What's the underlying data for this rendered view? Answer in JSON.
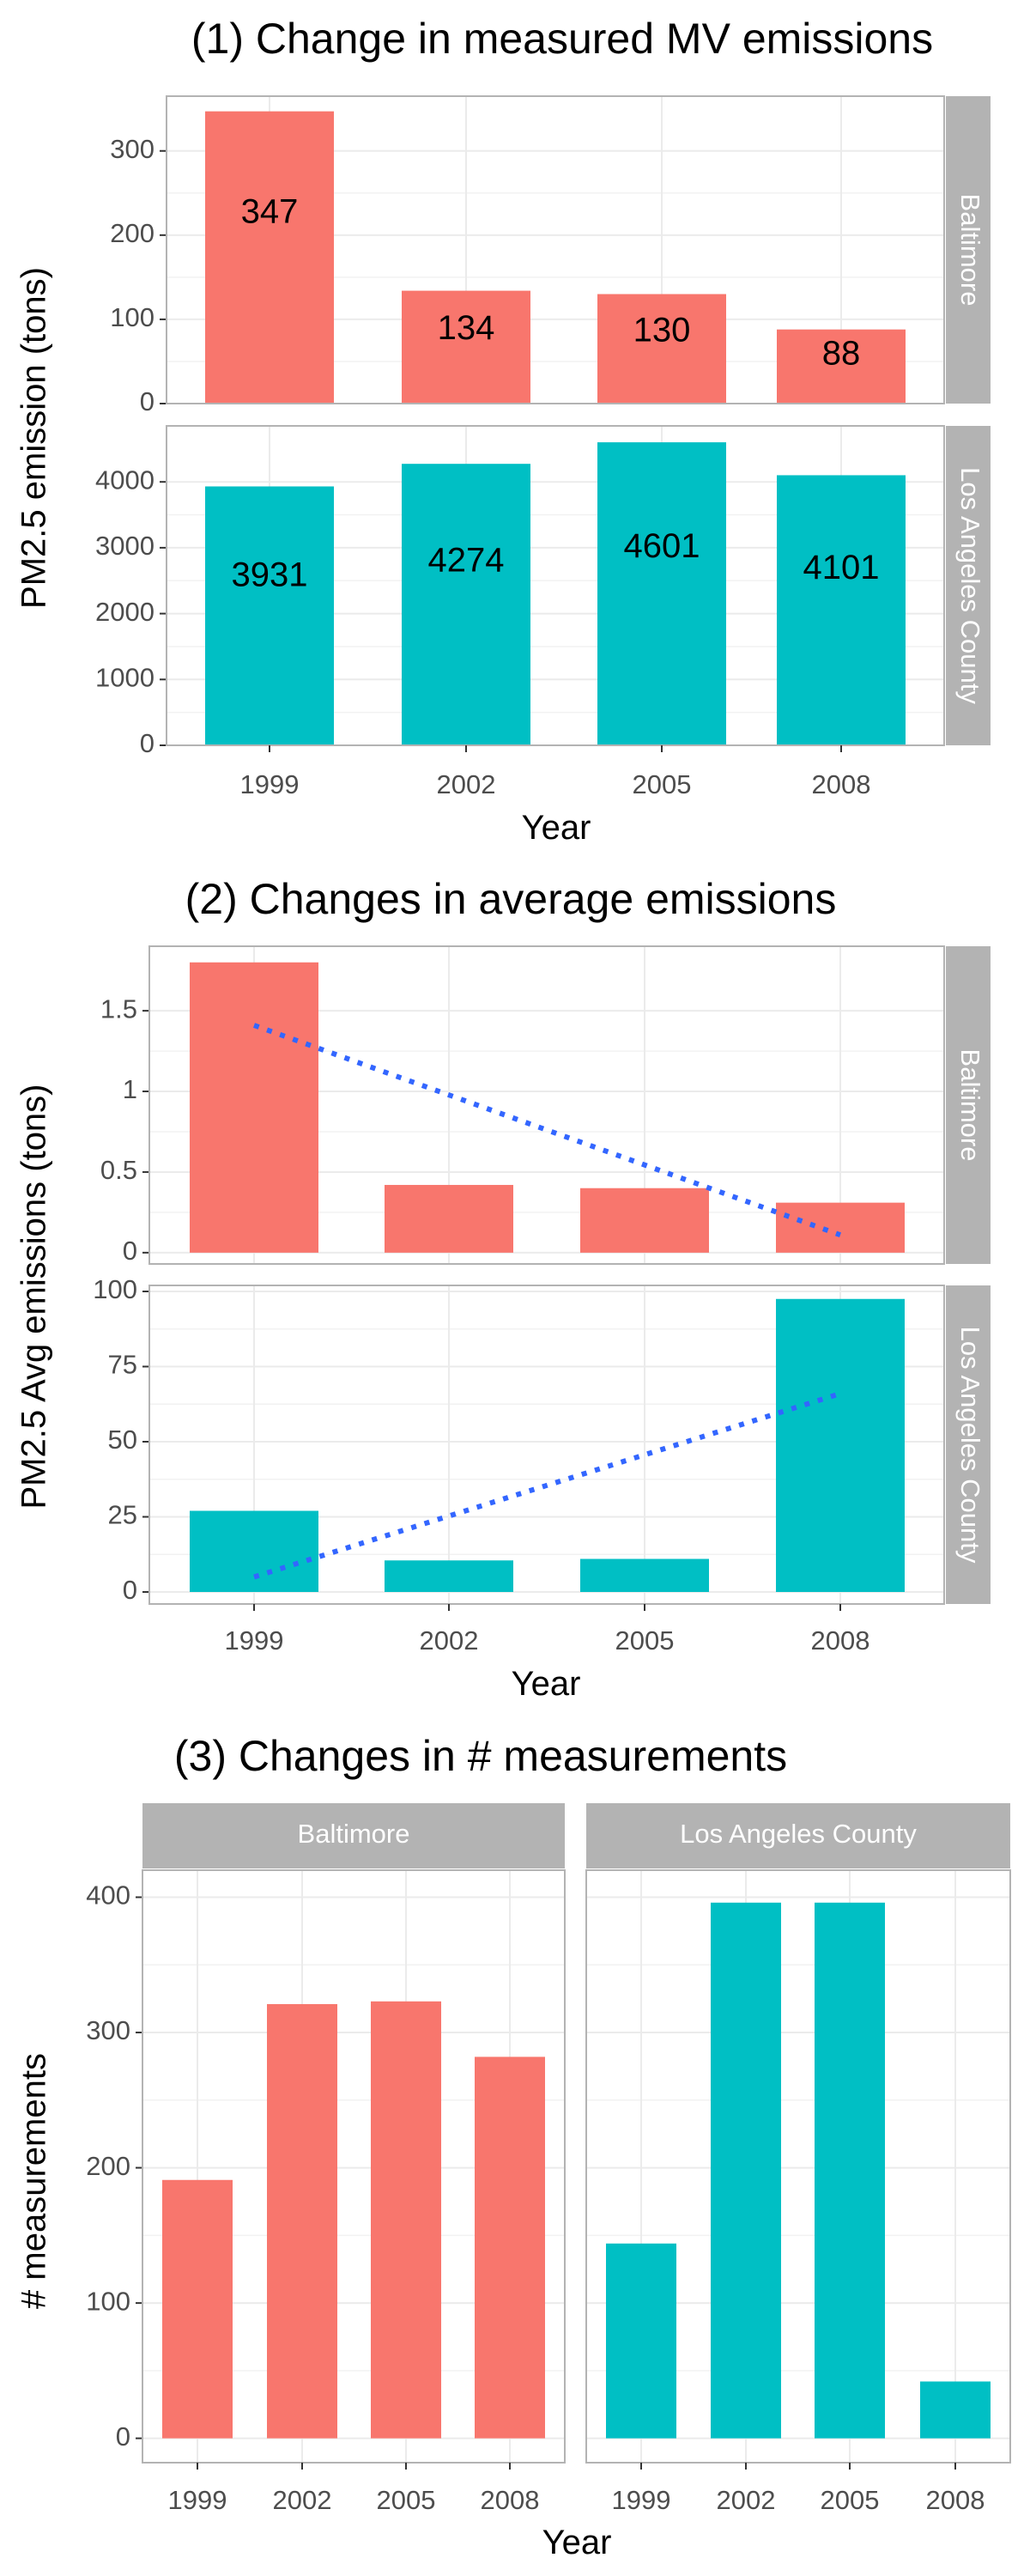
{
  "chart_data": [
    {
      "type": "bar",
      "title": "(1) Change in measured MV emissions",
      "xlabel": "Year",
      "ylabel": "PM2.5 emission (tons)",
      "categories": [
        "1999",
        "2002",
        "2005",
        "2008"
      ],
      "facet_layout": "rows",
      "panels": [
        {
          "facet": "Baltimore",
          "color": "#F8766D",
          "values": [
            347,
            134,
            130,
            88
          ],
          "data_labels": [
            "347",
            "134",
            "130",
            "88"
          ],
          "ylim": [
            0,
            365
          ],
          "yticks": [
            0,
            100,
            200,
            300
          ]
        },
        {
          "facet": "Los Angeles County",
          "color": "#00BFC4",
          "values": [
            3931,
            4274,
            4601,
            4101
          ],
          "data_labels": [
            "3931",
            "4274",
            "4601",
            "4101"
          ],
          "ylim": [
            0,
            4850
          ],
          "yticks": [
            0,
            1000,
            2000,
            3000,
            4000
          ]
        }
      ]
    },
    {
      "type": "bar",
      "title": "(2) Changes in average emissions",
      "xlabel": "Year",
      "ylabel": "PM2.5 Avg emissions (tons)",
      "categories": [
        "1999",
        "2002",
        "2005",
        "2008"
      ],
      "facet_layout": "rows",
      "panels": [
        {
          "facet": "Baltimore",
          "color": "#F8766D",
          "values": [
            1.8,
            0.42,
            0.4,
            0.31
          ],
          "ylim": [
            -0.07,
            1.9
          ],
          "yticks": [
            0.0,
            0.5,
            1.0,
            1.5
          ],
          "trend": {
            "color": "#3366FF",
            "style": "dotted",
            "from": [
              1999,
              1.41
            ],
            "to": [
              2008,
              0.11
            ]
          }
        },
        {
          "facet": "Los Angeles County",
          "color": "#00BFC4",
          "values": [
            27,
            10.5,
            11,
            97.5
          ],
          "ylim": [
            -4,
            102
          ],
          "yticks": [
            0,
            25,
            50,
            75,
            100
          ],
          "trend": {
            "color": "#3366FF",
            "style": "dotted",
            "from": [
              1999,
              5
            ],
            "to": [
              2008,
              66
            ]
          }
        }
      ]
    },
    {
      "type": "bar",
      "title": "(3) Changes in # measurements",
      "xlabel": "Year",
      "ylabel": "# measurements",
      "categories": [
        "1999",
        "2002",
        "2005",
        "2008"
      ],
      "facet_layout": "columns",
      "ylim": [
        -18,
        420
      ],
      "yticks": [
        0,
        100,
        200,
        300,
        400
      ],
      "panels": [
        {
          "facet": "Baltimore",
          "color": "#F8766D",
          "values": [
            191,
            321,
            323,
            282
          ]
        },
        {
          "facet": "Los Angeles County",
          "color": "#00BFC4",
          "values": [
            144,
            396,
            396,
            42
          ]
        }
      ]
    }
  ]
}
